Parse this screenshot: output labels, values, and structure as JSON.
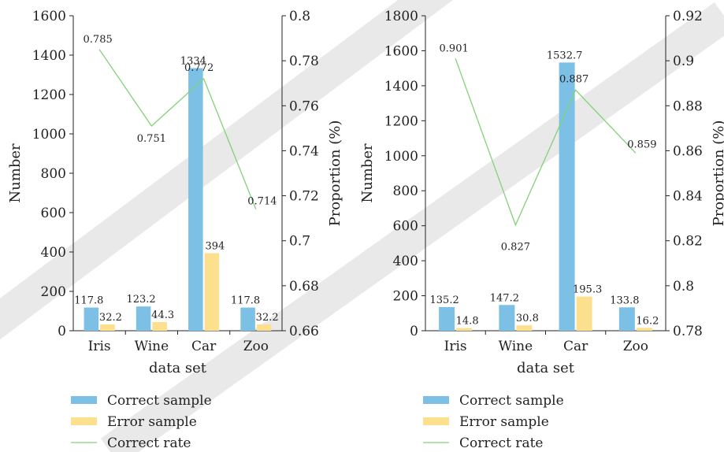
{
  "colors": {
    "correct": "#7cc0e6",
    "error": "#fde08e",
    "rate": "#82d277",
    "axis": "#222222",
    "watermark": "#cfcfcf"
  },
  "chart_data": [
    {
      "type": "bar",
      "categories": [
        "Iris",
        "Wine",
        "Car",
        "Zoo"
      ],
      "series": [
        {
          "name": "Correct sample",
          "axis": "left",
          "kind": "bar",
          "values": [
            117.8,
            123.2,
            1334,
            117.8
          ],
          "labels": [
            "117.8",
            "123.2",
            "1334",
            "117.8"
          ]
        },
        {
          "name": "Error sample",
          "axis": "left",
          "kind": "bar",
          "values": [
            32.2,
            44.3,
            394,
            32.2
          ],
          "labels": [
            "32.2",
            "44.3",
            "394",
            "32.2"
          ]
        },
        {
          "name": "Correct rate",
          "axis": "right",
          "kind": "line",
          "values": [
            0.785,
            0.751,
            0.772,
            0.714
          ],
          "labels": [
            "0.785",
            "0.751",
            "0.772",
            "0.714"
          ]
        }
      ],
      "xlabel": "data set",
      "ylabel": "Number",
      "y2label": "Proportion (%)",
      "ylim": [
        0,
        1600
      ],
      "yticks": [
        "0",
        "200",
        "400",
        "600",
        "800",
        "1000",
        "1200",
        "1400",
        "1600"
      ],
      "y2lim": [
        0.66,
        0.8
      ],
      "y2ticks": [
        "0.66",
        "0.68",
        "0.7",
        "0.72",
        "0.74",
        "0.76",
        "0.78",
        "0.8"
      ],
      "legend": [
        "Correct sample",
        "Error sample",
        "Correct rate"
      ],
      "legend_position": "bottom",
      "grid": false
    },
    {
      "type": "bar",
      "categories": [
        "Iris",
        "Wine",
        "Car",
        "Zoo"
      ],
      "series": [
        {
          "name": "Correct sample",
          "axis": "left",
          "kind": "bar",
          "values": [
            135.2,
            147.2,
            1532.7,
            133.8
          ],
          "labels": [
            "135.2",
            "147.2",
            "1532.7",
            "133.8"
          ]
        },
        {
          "name": "Error sample",
          "axis": "left",
          "kind": "bar",
          "values": [
            14.8,
            30.8,
            195.3,
            16.2
          ],
          "labels": [
            "14.8",
            "30.8",
            "195.3",
            "16.2"
          ]
        },
        {
          "name": "Correct rate",
          "axis": "right",
          "kind": "line",
          "values": [
            0.901,
            0.827,
            0.887,
            0.859
          ],
          "labels": [
            "0.901",
            "0.827",
            "0.887",
            "0.859"
          ]
        }
      ],
      "xlabel": "data set",
      "ylabel": "Number",
      "y2label": "Proportion (%)",
      "ylim": [
        0,
        1800
      ],
      "yticks": [
        "0",
        "200",
        "400",
        "600",
        "800",
        "1000",
        "1200",
        "1400",
        "1600",
        "1800"
      ],
      "y2lim": [
        0.78,
        0.92
      ],
      "y2ticks": [
        "0.78",
        "0.8",
        "0.82",
        "0.84",
        "0.86",
        "0.88",
        "0.9",
        "0.92"
      ],
      "legend": [
        "Correct sample",
        "Error sample",
        "Correct rate"
      ],
      "legend_position": "bottom",
      "grid": false
    }
  ]
}
